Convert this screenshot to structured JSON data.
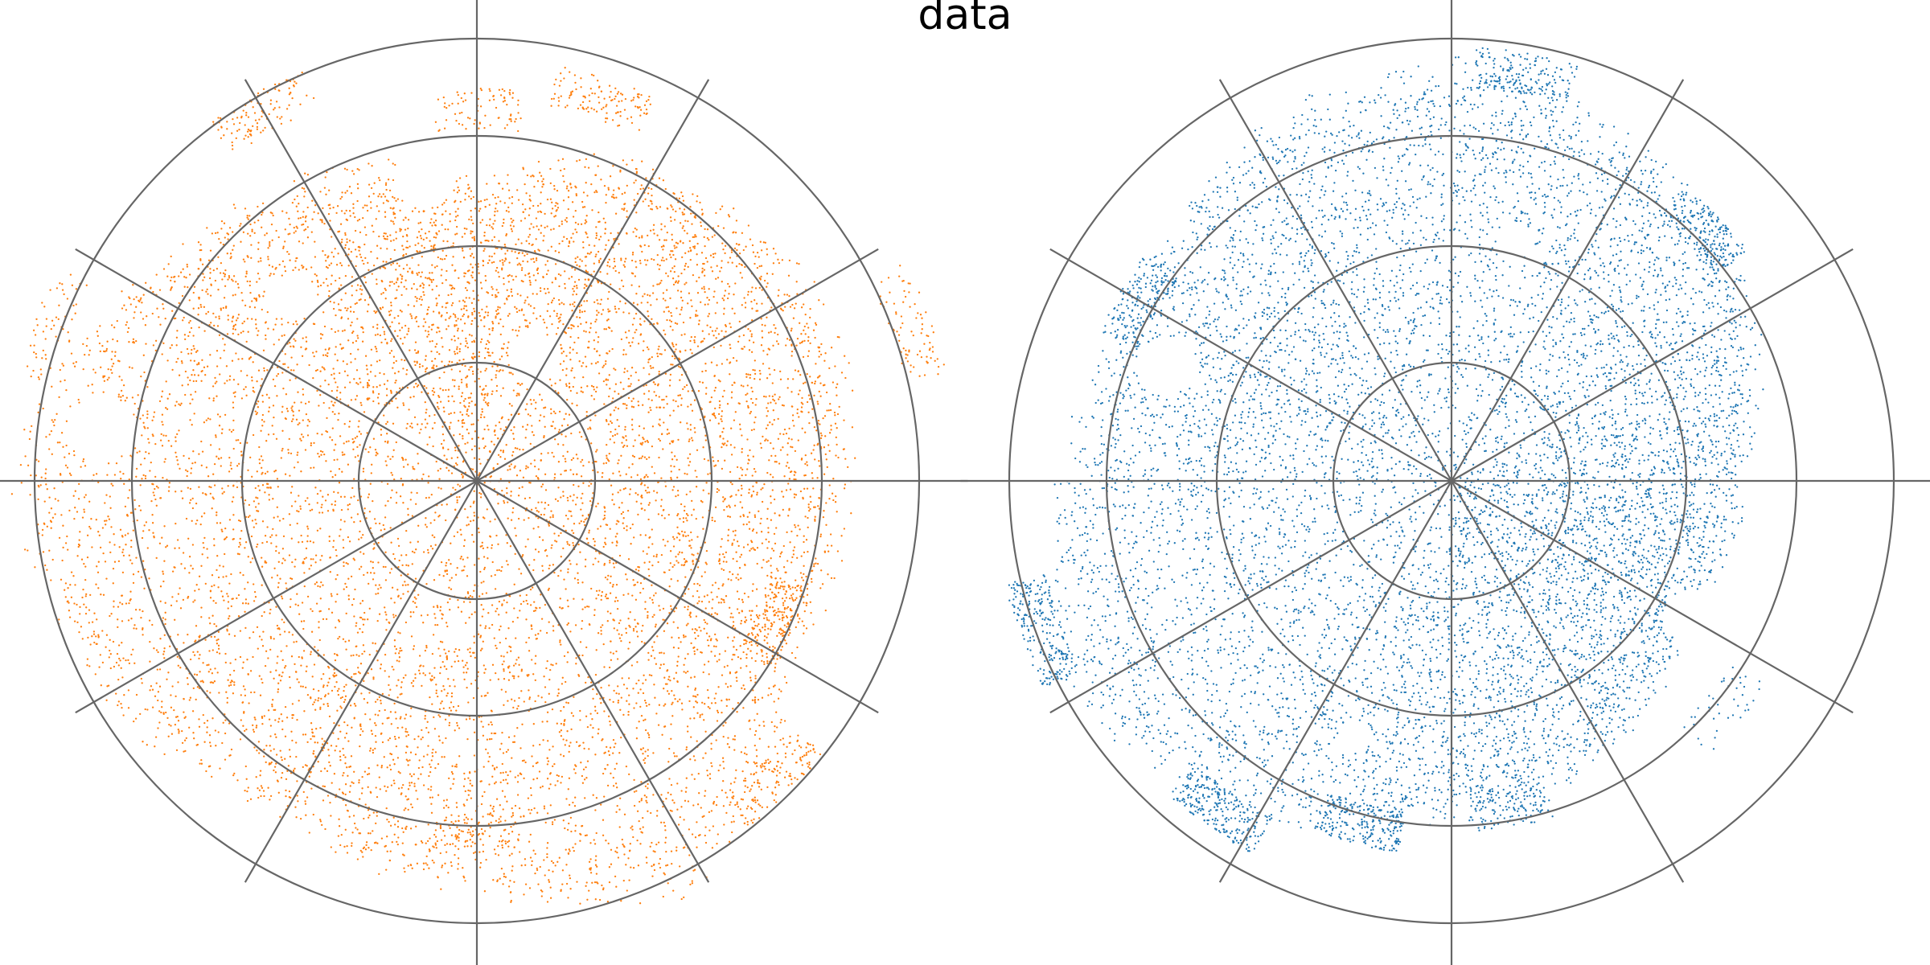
{
  "figure": {
    "title": "data"
  },
  "chart_data": [
    {
      "type": "scatter",
      "projection": "polar",
      "title": "",
      "grid": true,
      "radial_rings": 4,
      "angular_spokes": 12,
      "points_color": "#ff7f0e",
      "seed": 11,
      "point_density": 1.0,
      "density_bins": {
        "radius": [
          0,
          1,
          2,
          3,
          4
        ],
        "angular_sectors": 12
      },
      "coverage": {
        "angle_unit": "degrees",
        "angle_zero": "right",
        "angle_direction": "counterclockwise",
        "radius_unit": "ring",
        "dense_core": [
          [
            0,
            3.1
          ],
          [
            30,
            3.25
          ],
          [
            60,
            3.0
          ],
          [
            90,
            2.5
          ],
          [
            120,
            2.9
          ],
          [
            150,
            3.3
          ],
          [
            180,
            3.85
          ],
          [
            210,
            3.6
          ],
          [
            240,
            3.2
          ],
          [
            270,
            3.45
          ],
          [
            300,
            3.9
          ],
          [
            330,
            3.0
          ],
          [
            360,
            3.1
          ]
        ],
        "patches": [
          {
            "angle": 72,
            "radius": 3.4,
            "count": 120
          },
          {
            "angle": 90,
            "radius": 3.15,
            "count": 80
          },
          {
            "angle": 120,
            "radius": 3.6,
            "count": 110
          },
          {
            "angle": 20,
            "radius": 3.9,
            "count": 80
          },
          {
            "angle": 335,
            "radius": 2.8,
            "count": 160
          },
          {
            "angle": 315,
            "radius": 3.55,
            "count": 140
          },
          {
            "angle": 160,
            "radius": 3.8,
            "count": 60
          },
          {
            "angle": 270,
            "radius": 3.0,
            "count": 90
          }
        ],
        "voids": [
          {
            "angle": 65,
            "radius": 1.15,
            "size": 0.22
          },
          {
            "angle": 135,
            "radius": 2.2,
            "size": 0.2
          },
          {
            "angle": 172,
            "radius": 3.2,
            "size": 0.28
          },
          {
            "angle": 100,
            "radius": 2.6,
            "size": 0.25
          }
        ]
      }
    },
    {
      "type": "scatter",
      "projection": "polar",
      "title": "",
      "grid": true,
      "radial_rings": 4,
      "angular_spokes": 12,
      "points_color": "#1f77b4",
      "seed": 23,
      "point_density": 1.0,
      "density_bins": {
        "radius": [
          0,
          1,
          2,
          3,
          4
        ],
        "angular_sectors": 12
      },
      "coverage": {
        "angle_unit": "degrees",
        "angle_zero": "right",
        "angle_direction": "counterclockwise",
        "radius_unit": "ring",
        "dense_core": [
          [
            0,
            2.4
          ],
          [
            30,
            2.9
          ],
          [
            60,
            3.2
          ],
          [
            90,
            3.5
          ],
          [
            120,
            3.3
          ],
          [
            150,
            3.0
          ],
          [
            180,
            3.25
          ],
          [
            210,
            3.6
          ],
          [
            240,
            3.2
          ],
          [
            270,
            2.8
          ],
          [
            300,
            2.6
          ],
          [
            330,
            2.3
          ],
          [
            360,
            2.4
          ]
        ],
        "patches": [
          {
            "angle": 45,
            "radius": 3.0,
            "count": 200
          },
          {
            "angle": 150,
            "radius": 3.05,
            "count": 180
          },
          {
            "angle": 200,
            "radius": 3.7,
            "count": 240
          },
          {
            "angle": 235,
            "radius": 3.4,
            "count": 260
          },
          {
            "angle": 255,
            "radius": 3.0,
            "count": 220
          },
          {
            "angle": 280,
            "radius": 2.8,
            "count": 140
          },
          {
            "angle": 320,
            "radius": 3.0,
            "count": 40
          },
          {
            "angle": 80,
            "radius": 3.5,
            "count": 180
          }
        ],
        "voids": [
          {
            "angle": 158,
            "radius": 2.6,
            "size": 0.25
          },
          {
            "angle": 75,
            "radius": 2.1,
            "size": 0.15
          },
          {
            "angle": 330,
            "radius": 2.3,
            "size": 0.2
          },
          {
            "angle": 250,
            "radius": 2.3,
            "size": 0.12
          }
        ]
      }
    }
  ]
}
